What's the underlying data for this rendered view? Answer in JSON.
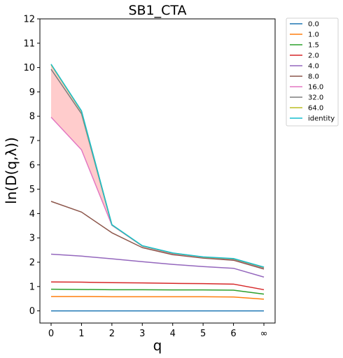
{
  "chart_data": {
    "type": "line",
    "title": "SB1_CTA",
    "xlabel": "q",
    "ylabel": "ln(D(q,λ))",
    "categories": [
      "0",
      "1",
      "2",
      "3",
      "4",
      "5",
      "6",
      "∞"
    ],
    "ylim": [
      -0.5,
      12
    ],
    "yticks": [
      0,
      1,
      2,
      3,
      4,
      5,
      6,
      7,
      8,
      9,
      10,
      11,
      12
    ],
    "grid": false,
    "legend_position": "outside-top-right",
    "series": [
      {
        "name": "0.0",
        "color": "#1f77b4",
        "values": [
          0,
          0,
          0,
          0,
          0,
          0,
          0,
          0
        ]
      },
      {
        "name": "1.0",
        "color": "#ff7f0e",
        "values": [
          0.59,
          0.59,
          0.58,
          0.58,
          0.58,
          0.58,
          0.57,
          0.48
        ]
      },
      {
        "name": "1.5",
        "color": "#2ca02c",
        "values": [
          0.89,
          0.88,
          0.87,
          0.87,
          0.86,
          0.86,
          0.85,
          0.69
        ]
      },
      {
        "name": "2.0",
        "color": "#d62728",
        "values": [
          1.19,
          1.18,
          1.16,
          1.15,
          1.13,
          1.12,
          1.1,
          0.87
        ]
      },
      {
        "name": "4.0",
        "color": "#9467bd",
        "values": [
          2.33,
          2.25,
          2.14,
          2.02,
          1.91,
          1.82,
          1.75,
          1.39
        ]
      },
      {
        "name": "8.0",
        "color": "#8c564b",
        "values": [
          4.5,
          4.06,
          3.21,
          2.6,
          2.31,
          2.17,
          2.08,
          1.72
        ]
      },
      {
        "name": "16.0",
        "color": "#e377c2",
        "values": [
          7.96,
          6.62,
          3.52,
          2.66,
          2.35,
          2.2,
          2.12,
          1.77
        ]
      },
      {
        "name": "32.0",
        "color": "#7f7f7f",
        "values": [
          9.93,
          8.1,
          3.53,
          2.67,
          2.37,
          2.21,
          2.13,
          1.78
        ]
      },
      {
        "name": "64.0",
        "color": "#bcbd22",
        "values": [
          10.12,
          8.2,
          3.54,
          2.67,
          2.37,
          2.21,
          2.14,
          1.79
        ]
      },
      {
        "name": "identity",
        "color": "#17becf",
        "values": [
          10.14,
          8.22,
          3.54,
          2.68,
          2.38,
          2.22,
          2.15,
          1.8
        ]
      }
    ],
    "fill_between": {
      "lower_series": "16.0",
      "upper_series": "identity",
      "color": "#ff9999"
    }
  }
}
